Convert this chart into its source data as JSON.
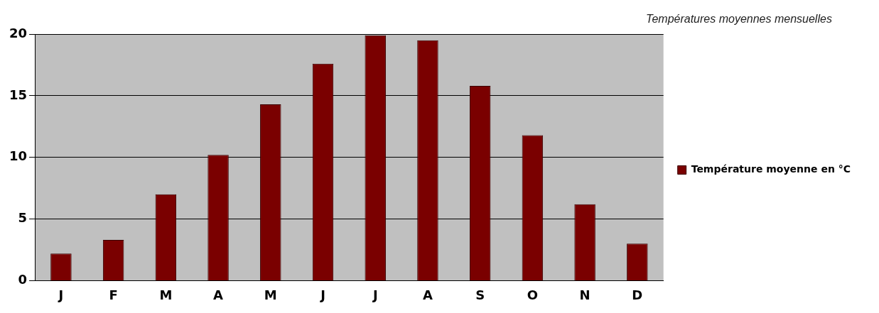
{
  "chart_data": {
    "type": "bar",
    "title": "Températures moyennes mensuelles",
    "categories": [
      "J",
      "F",
      "M",
      "A",
      "M",
      "J",
      "J",
      "A",
      "S",
      "O",
      "N",
      "D"
    ],
    "series": [
      {
        "name": "Température moyenne en °C",
        "color": "#7a0000",
        "values": [
          2.2,
          3.3,
          7,
          10.2,
          14.3,
          17.6,
          19.9,
          19.5,
          15.8,
          11.8,
          6.2,
          3.0
        ]
      }
    ],
    "ylim": [
      0,
      20
    ],
    "yticks": [
      0,
      5,
      10,
      15,
      20
    ],
    "grid": "y",
    "legend": "right"
  }
}
